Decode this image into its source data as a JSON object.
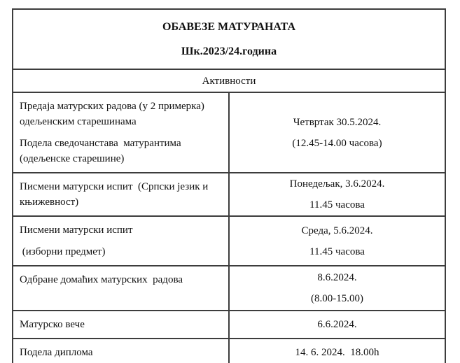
{
  "doc": {
    "title": "ОБАВЕЗЕ МАТУРАНАТА",
    "subtitle": "Шк.2023/24.година",
    "section_header": "Активности",
    "rows": [
      {
        "activity": [
          "Предаја матурских радова (у 2 примерка) одељенским старешинама",
          "Подела сведочанстава  матурантима (одељенске старешине)"
        ],
        "schedule": [
          "Четвртак 30.5.2024.",
          "(12.45-14.00 часова)"
        ]
      },
      {
        "activity": [
          "Писмени матурски испит  (Српски језик и књижевност)"
        ],
        "schedule": [
          "Понедељак, 3.6.2024.",
          "11.45 часова"
        ]
      },
      {
        "activity": [
          "Писмени матурски испит",
          " (изборни предмет)"
        ],
        "schedule": [
          "Среда, 5.6.2024.",
          "11.45 часова"
        ]
      },
      {
        "activity": [
          "Одбране домаћих матурских  радова"
        ],
        "schedule": [
          "8.6.2024.",
          "(8.00-15.00)"
        ]
      },
      {
        "activity": [
          "Матурско вече"
        ],
        "schedule": [
          "6.6.2024."
        ]
      },
      {
        "activity": [
          "Подела диплома"
        ],
        "schedule": [
          "14. 6. 2024.  18.00h"
        ]
      }
    ],
    "colors": {
      "border": "#3d3d3d",
      "text": "#111111",
      "background": "#ffffff"
    }
  }
}
